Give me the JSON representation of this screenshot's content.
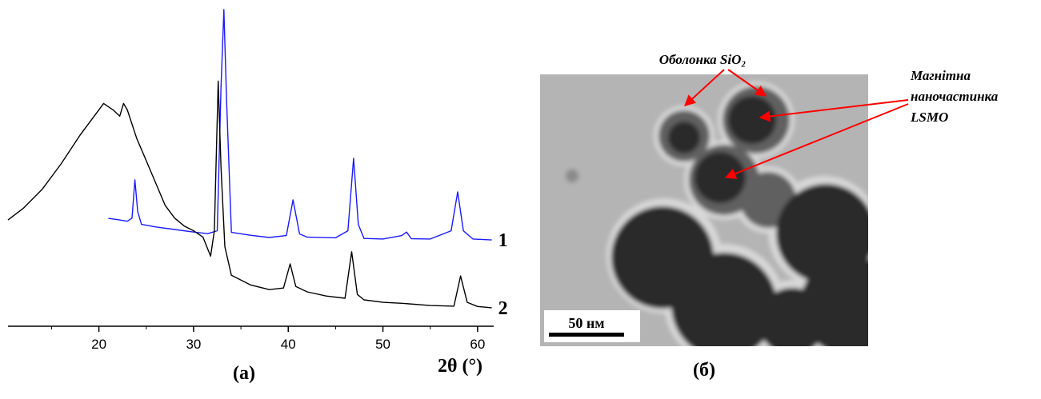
{
  "chart_data": {
    "type": "line",
    "caption": "(a)",
    "x_label": "2θ (°)",
    "xlim": [
      10.4,
      61.7
    ],
    "ylim": [
      0,
      100
    ],
    "xticks": [
      20,
      30,
      40,
      50,
      60
    ],
    "series": [
      {
        "name": "1",
        "color": "#1a1aff",
        "x": [
          21,
          22,
          23,
          23.5,
          23.8,
          24.1,
          24.5,
          26,
          28,
          30,
          31.5,
          32.5,
          32.9,
          33.2,
          33.5,
          34,
          36,
          38,
          39.8,
          40.5,
          41.2,
          42,
          45,
          46.3,
          46.9,
          47.4,
          48,
          50,
          52,
          52.5,
          53,
          55,
          57.2,
          57.9,
          58.5,
          59.5,
          61.5
        ],
        "values": [
          33.9,
          33.5,
          33,
          34,
          46,
          36,
          32,
          31.2,
          30.4,
          29.6,
          29.1,
          30,
          75,
          99.5,
          70,
          29.5,
          28.6,
          27.9,
          28.5,
          39.7,
          29,
          28,
          27.8,
          30,
          52.8,
          32,
          27.6,
          27.4,
          28.5,
          29.6,
          27.5,
          27.4,
          30,
          42.2,
          30,
          27.4,
          27.1
        ]
      },
      {
        "name": "2",
        "color": "#000000",
        "x": [
          10.4,
          12,
          14,
          16,
          18,
          19.5,
          20.5,
          21.5,
          22.2,
          22.6,
          23,
          24,
          25,
          26,
          27,
          28,
          29,
          30,
          31,
          31.8,
          32.2,
          32.6,
          32.9,
          33.3,
          34,
          35,
          36,
          38,
          39.5,
          40.2,
          40.8,
          42,
          44,
          46,
          46.7,
          47.3,
          48,
          50,
          52,
          55,
          57.5,
          58.2,
          58.9,
          60,
          61.5
        ],
        "values": [
          33.4,
          37,
          43,
          51,
          60,
          66,
          70,
          68,
          66,
          70,
          68,
          59,
          52,
          45,
          38,
          34,
          31.5,
          30,
          28,
          22,
          30,
          77,
          50,
          25,
          16,
          14.5,
          13,
          11.5,
          12,
          19.6,
          12.5,
          10.8,
          9.5,
          8.8,
          23.4,
          10,
          8.3,
          7.5,
          7.2,
          6.5,
          6.3,
          15.8,
          7.5,
          6.2,
          5.8
        ]
      }
    ]
  },
  "panel_b": {
    "caption": "(б)",
    "scale_bar": "50 нм",
    "shell_label": "Оболонка SiO₂",
    "core_label": [
      "Магнітна",
      "наночастинка",
      "LSMO"
    ]
  }
}
